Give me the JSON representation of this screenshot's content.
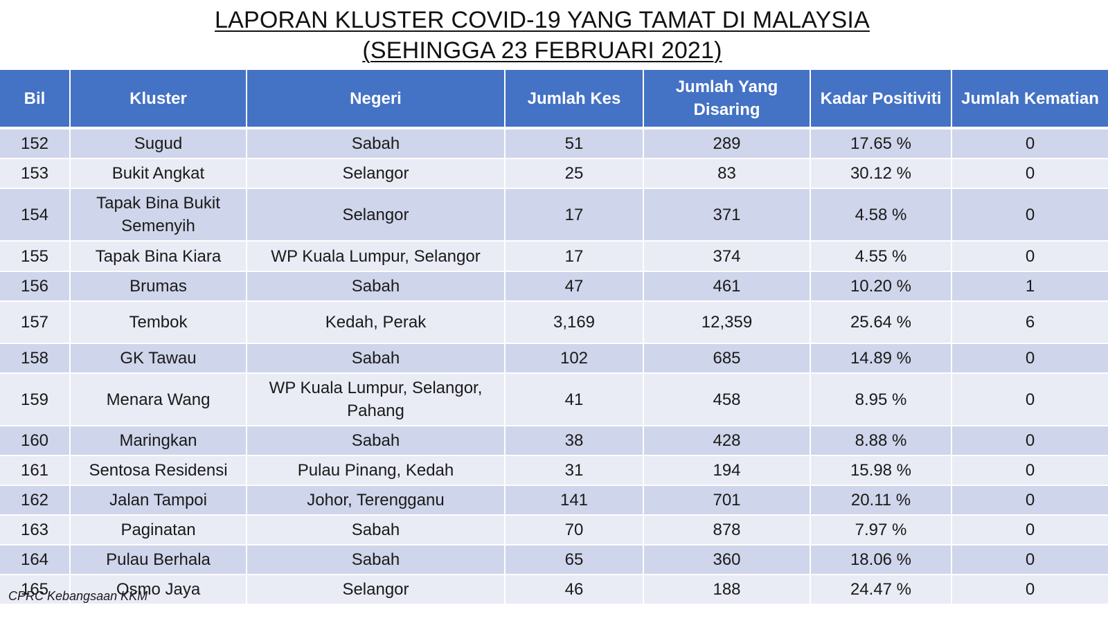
{
  "title": {
    "line1": "LAPORAN KLUSTER COVID-19 YANG TAMAT DI MALAYSIA",
    "line2": "(SEHINGGA  23 FEBRUARI 2021)"
  },
  "table": {
    "headers": {
      "bil": "Bil",
      "kluster": "Kluster",
      "negeri": "Negeri",
      "jumlah_kes": "Jumlah Kes",
      "jumlah_disaring": "Jumlah Yang Disaring",
      "kadar_positiviti": "Kadar Positiviti",
      "jumlah_kematian": "Jumlah Kematian"
    },
    "rows": [
      {
        "bil": "152",
        "kluster": "Sugud",
        "negeri": "Sabah",
        "kes": "51",
        "disaring": "289",
        "kadar": "17.65 %",
        "kematian": "0"
      },
      {
        "bil": "153",
        "kluster": "Bukit Angkat",
        "negeri": "Selangor",
        "kes": "25",
        "disaring": "83",
        "kadar": "30.12 %",
        "kematian": "0"
      },
      {
        "bil": "154",
        "kluster": "Tapak Bina Bukit Semenyih",
        "negeri": "Selangor",
        "kes": "17",
        "disaring": "371",
        "kadar": "4.58 %",
        "kematian": "0"
      },
      {
        "bil": "155",
        "kluster": "Tapak Bina Kiara",
        "negeri": "WP Kuala Lumpur, Selangor",
        "kes": "17",
        "disaring": "374",
        "kadar": "4.55 %",
        "kematian": "0"
      },
      {
        "bil": "156",
        "kluster": "Brumas",
        "negeri": "Sabah",
        "kes": "47",
        "disaring": "461",
        "kadar": "10.20 %",
        "kematian": "1"
      },
      {
        "bil": "157",
        "kluster": "Tembok",
        "negeri": "Kedah, Perak",
        "kes": "3,169",
        "disaring": "12,359",
        "kadar": "25.64 %",
        "kematian": "6"
      },
      {
        "bil": "158",
        "kluster": "GK Tawau",
        "negeri": "Sabah",
        "kes": "102",
        "disaring": "685",
        "kadar": "14.89 %",
        "kematian": "0"
      },
      {
        "bil": "159",
        "kluster": "Menara Wang",
        "negeri": "WP Kuala Lumpur, Selangor, Pahang",
        "kes": "41",
        "disaring": "458",
        "kadar": "8.95 %",
        "kematian": "0"
      },
      {
        "bil": "160",
        "kluster": "Maringkan",
        "negeri": "Sabah",
        "kes": "38",
        "disaring": "428",
        "kadar": "8.88 %",
        "kematian": "0"
      },
      {
        "bil": "161",
        "kluster": "Sentosa Residensi",
        "negeri": "Pulau Pinang, Kedah",
        "kes": "31",
        "disaring": "194",
        "kadar": "15.98 %",
        "kematian": "0"
      },
      {
        "bil": "162",
        "kluster": "Jalan Tampoi",
        "negeri": "Johor, Terengganu",
        "kes": "141",
        "disaring": "701",
        "kadar": "20.11 %",
        "kematian": "0"
      },
      {
        "bil": "163",
        "kluster": "Paginatan",
        "negeri": "Sabah",
        "kes": "70",
        "disaring": "878",
        "kadar": "7.97 %",
        "kematian": "0"
      },
      {
        "bil": "164",
        "kluster": "Pulau Berhala",
        "negeri": "Sabah",
        "kes": "65",
        "disaring": "360",
        "kadar": "18.06 %",
        "kematian": "0"
      },
      {
        "bil": "165",
        "kluster": "Osmo Jaya",
        "negeri": "Selangor",
        "kes": "46",
        "disaring": "188",
        "kadar": "24.47 %",
        "kematian": "0"
      }
    ]
  },
  "footer": {
    "source": "CPRC Kebangsaan KKM"
  },
  "colors": {
    "header_bg": "#4472c4",
    "row_dark": "#cfd5ea",
    "row_light": "#e9ebf5"
  }
}
